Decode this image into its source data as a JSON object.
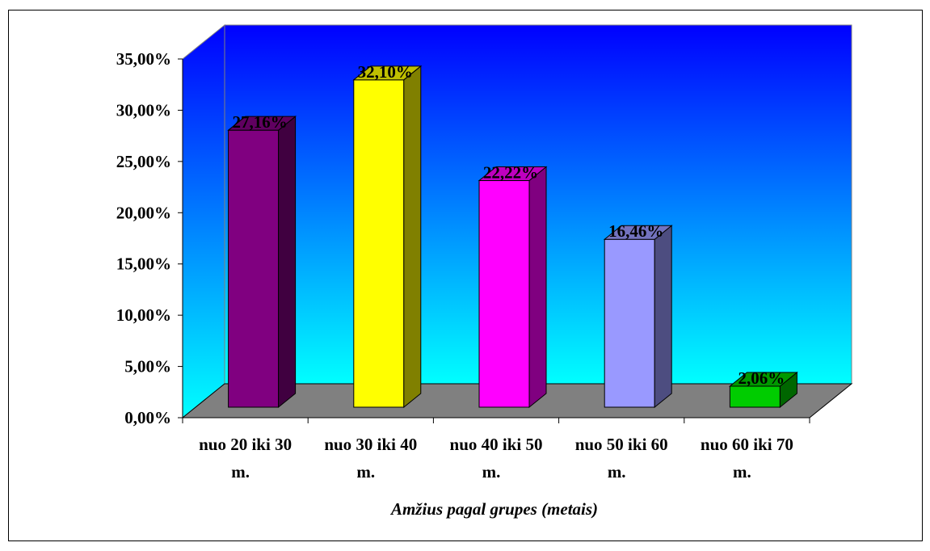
{
  "chart_data": {
    "type": "bar",
    "categories": [
      "nuo 20 iki 30 m.",
      "nuo 30 iki 40 m.",
      "nuo 40 iki 50 m.",
      "nuo 50 iki 60 m.",
      "nuo 60 iki 70 m."
    ],
    "category_lines": [
      [
        "nuo 20 iki 30",
        "m."
      ],
      [
        "nuo 30 iki 40",
        "m."
      ],
      [
        "nuo 40 iki 50",
        "m."
      ],
      [
        "nuo 50 iki 60",
        "m."
      ],
      [
        "nuo 60 iki 70",
        "m."
      ]
    ],
    "values": [
      27.16,
      32.1,
      22.22,
      16.46,
      2.06
    ],
    "data_labels": [
      "27,16%",
      "32,10%",
      "22,22%",
      "16,46%",
      "2,06%"
    ],
    "bar_colors": [
      "#800080",
      "#FFFF00",
      "#FF00FF",
      "#9999FF",
      "#00CC00"
    ],
    "ylim": [
      0,
      35
    ],
    "yticks": [
      "0,00%",
      "5,00%",
      "10,00%",
      "15,00%",
      "20,00%",
      "25,00%",
      "30,00%",
      "35,00%"
    ],
    "xlabel": "Amžius pagal grupes (metais)",
    "ylabel": "",
    "title": "",
    "grid": false,
    "legend": "none",
    "style": "3d",
    "background_gradient": [
      "#0000FF",
      "#00FFFF"
    ],
    "floor_color": "#808080"
  }
}
